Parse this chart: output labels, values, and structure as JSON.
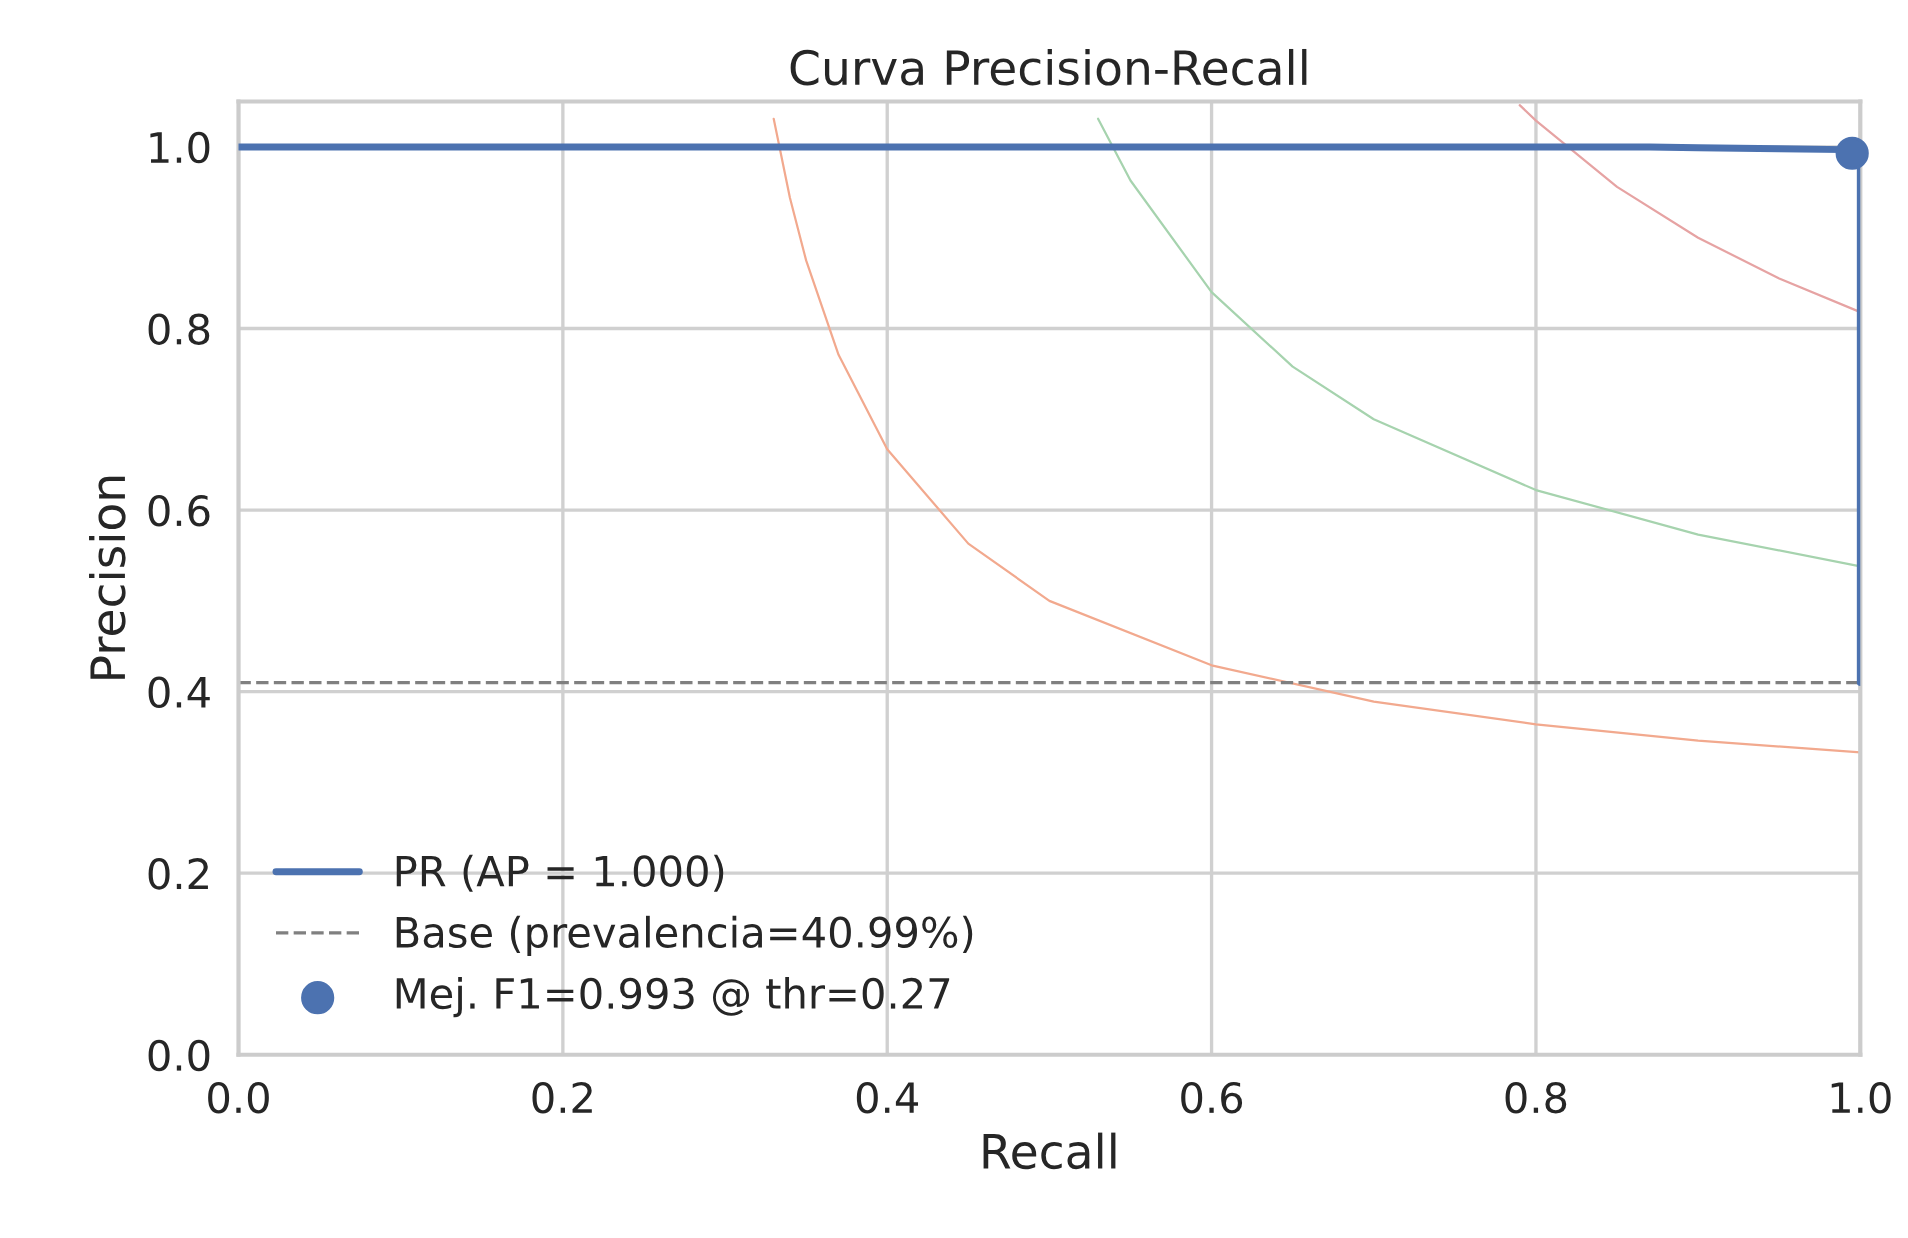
{
  "chart_data": {
    "type": "line",
    "title": "Curva Precision-Recall",
    "xlabel": "Recall",
    "ylabel": "Precision",
    "xlim": [
      0,
      1
    ],
    "ylim": [
      0,
      1.05
    ],
    "xticks": [
      {
        "value": 0,
        "label": "0.0"
      },
      0.2,
      0.4,
      0.6,
      0.8,
      {
        "value": 1,
        "label": "1.0"
      }
    ],
    "yticks": [
      {
        "value": 0,
        "label": "0.0"
      },
      0.2,
      0.4,
      0.6,
      0.8,
      {
        "value": 1,
        "label": "1.0"
      }
    ],
    "grid": true,
    "legend": "bottom left",
    "marker": "none",
    "line_style": "solid",
    "series": [
      {
        "name": "PR (AP = 1.000)",
        "color": "#4c72b0",
        "x": [
          0,
          0.87,
          0.9,
          0.95,
          0.99,
          0.995,
          1.0,
          1.0
        ],
        "values": [
          1,
          1,
          0.999,
          0.998,
          0.997,
          0.993,
          0.99,
          0.41
        ]
      },
      {
        "color": "#f2a98e",
        "x": [
          0.33,
          0.34,
          0.35,
          0.37,
          0.4,
          0.45,
          0.5,
          0.6,
          0.7,
          0.8,
          0.9,
          1.0
        ],
        "values": [
          1.031,
          0.944,
          0.875,
          0.771,
          0.667,
          0.563,
          0.5,
          0.429,
          0.389,
          0.364,
          0.346,
          0.333
        ]
      },
      {
        "color": "#a6d3ae",
        "x": [
          0.53,
          0.55,
          0.6,
          0.65,
          0.7,
          0.8,
          0.9,
          1.0
        ],
        "values": [
          1.031,
          0.963,
          0.84,
          0.758,
          0.7,
          0.622,
          0.573,
          0.538
        ]
      },
      {
        "color": "#e6a3a3",
        "x": [
          0.79,
          0.8,
          0.85,
          0.9,
          0.95,
          1.0
        ],
        "values": [
          1.046,
          1.029,
          0.956,
          0.9,
          0.855,
          0.818
        ]
      },
      {
        "name": "Mej. F1=0.993 @ thr=0.27",
        "type": "scatter",
        "marker": "circle",
        "color": "#4c72b0",
        "x": [
          0.995
        ],
        "values": [
          0.993
        ]
      }
    ],
    "ref_lines": [
      {
        "axis": "y",
        "value": 0.4099,
        "label": "Base (prevalencia=40.99%)",
        "color": "#808080",
        "line_style": "dashed"
      }
    ]
  }
}
